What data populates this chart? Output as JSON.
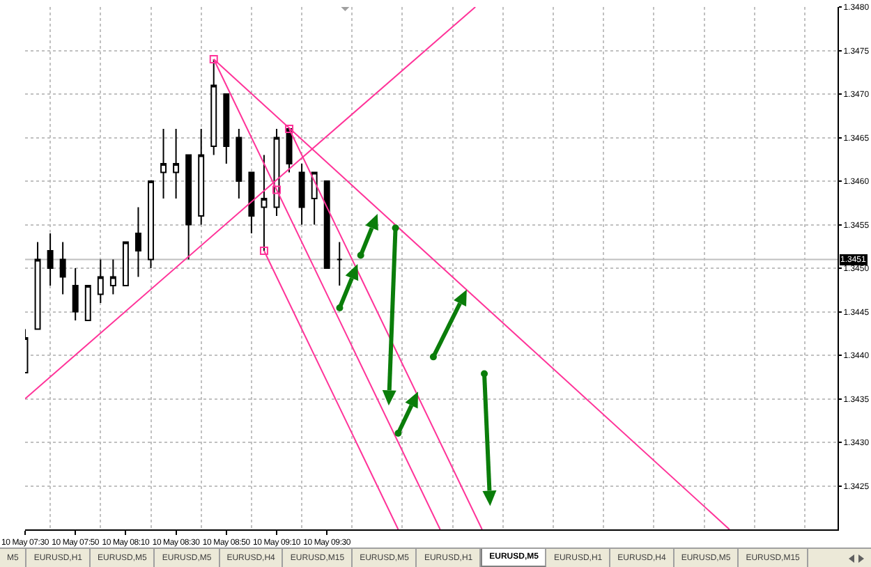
{
  "chart_data": {
    "type": "candlestick",
    "x": [
      "--05-10T07:30",
      "--05-10T07:35",
      "--05-10T07:40",
      "--05-10T07:45",
      "--05-10T07:50",
      "--05-10T07:55",
      "--05-10T08:00",
      "--05-10T08:05",
      "--05-10T08:10",
      "--05-10T08:15",
      "--05-10T08:20",
      "--05-10T08:25",
      "--05-10T08:30",
      "--05-10T08:35",
      "--05-10T08:40",
      "--05-10T08:45",
      "--05-10T08:50",
      "--05-10T08:55",
      "--05-10T09:00",
      "--05-10T09:05",
      "--05-10T09:10",
      "--05-10T09:15",
      "--05-10T09:20",
      "--05-10T09:25",
      "--05-10T09:30",
      "--05-10T09:35"
    ],
    "ohlc": [
      [
        1.3438,
        1.3443,
        1.3438,
        1.3442
      ],
      [
        1.3443,
        1.3453,
        1.3443,
        1.3451
      ],
      [
        1.3452,
        1.3454,
        1.3448,
        1.345
      ],
      [
        1.3451,
        1.3453,
        1.3447,
        1.3449
      ],
      [
        1.3448,
        1.345,
        1.3444,
        1.3445
      ],
      [
        1.3444,
        1.3448,
        1.3444,
        1.3448
      ],
      [
        1.3447,
        1.3451,
        1.3446,
        1.3449
      ],
      [
        1.3448,
        1.3451,
        1.3447,
        1.3449
      ],
      [
        1.3448,
        1.3453,
        1.3448,
        1.3453
      ],
      [
        1.3454,
        1.3457,
        1.3449,
        1.3452
      ],
      [
        1.3451,
        1.346,
        1.345,
        1.346
      ],
      [
        1.3461,
        1.3466,
        1.3458,
        1.3462
      ],
      [
        1.3461,
        1.3466,
        1.3458,
        1.3462
      ],
      [
        1.3463,
        1.3463,
        1.3451,
        1.3455
      ],
      [
        1.3456,
        1.3466,
        1.3455,
        1.3463
      ],
      [
        1.3464,
        1.3474,
        1.3463,
        1.3471
      ],
      [
        1.347,
        1.347,
        1.3462,
        1.3464
      ],
      [
        1.3465,
        1.3466,
        1.3458,
        1.346
      ],
      [
        1.3461,
        1.3461,
        1.3454,
        1.3456
      ],
      [
        1.3457,
        1.3463,
        1.3452,
        1.3458
      ],
      [
        1.3457,
        1.3466,
        1.3456,
        1.3465
      ],
      [
        1.3466,
        1.3466,
        1.3461,
        1.3462
      ],
      [
        1.3461,
        1.3462,
        1.3455,
        1.3457
      ],
      [
        1.3458,
        1.3461,
        1.3455,
        1.3461
      ],
      [
        1.346,
        1.346,
        1.345,
        1.345
      ],
      [
        1.3451,
        1.3453,
        1.3448,
        1.3451
      ]
    ],
    "color": "#000000",
    "colors": [
      "#ffffff",
      "#ffffff",
      "#000000",
      "#000000",
      "#000000",
      "#ffffff",
      "#ffffff",
      "#ffffff",
      "#ffffff",
      "#000000",
      "#ffffff",
      "#ffffff",
      "#ffffff",
      "#000000",
      "#ffffff",
      "#ffffff",
      "#000000",
      "#000000",
      "#000000",
      "#ffffff",
      "#ffffff",
      "#000000",
      "#000000",
      "#ffffff",
      "#000000",
      "#000000"
    ],
    "series": [
      {
        "type": "line",
        "x": [
          "--05-10T08:45",
          "--05-10T10:15"
        ],
        "values": [
          1.3474,
          1.342
        ],
        "color": "#ff3399"
      },
      {
        "type": "line",
        "x": [
          "--05-10T09:15",
          "--05-10T10:31:40"
        ],
        "values": [
          1.3466,
          1.342
        ],
        "color": "#ff3399"
      },
      {
        "type": "line",
        "x": [
          "--05-10T09:05",
          "--05-10T09:58:20"
        ],
        "values": [
          1.3452,
          1.342
        ],
        "color": "#ff3399"
      },
      {
        "type": "line",
        "x": [
          "--05-10T08:45",
          "--05-10T12:10"
        ],
        "values": [
          1.3474,
          1.342
        ],
        "color": "#ff3399"
      },
      {
        "type": "line",
        "x": [
          "--05-10T07:30",
          "--05-10T10:29"
        ],
        "values": [
          1.3435,
          1.348
        ],
        "color": "#ff3399"
      },
      {
        "type": "scatter",
        "x": [
          "--05-10T08:45",
          "--05-10T09:15",
          "--05-10T09:05",
          "--05-10T09:10"
        ],
        "values": [
          1.3474,
          1.3466,
          1.3452,
          1.3459
        ],
        "color": "#ff3399",
        "marker": "square"
      }
    ],
    "xlim": [
      "--05-10T07:30",
      "--05-10T12:53"
    ],
    "xticks": [
      {
        "value": "--05-10T07:30",
        "label": "10 May 07:30"
      },
      {
        "value": "--05-10T07:50",
        "label": "10 May 07:50"
      },
      {
        "value": "--05-10T08:10",
        "label": "10 May 08:10"
      },
      {
        "value": "--05-10T08:30",
        "label": "10 May 08:30"
      },
      {
        "value": "--05-10T08:50",
        "label": "10 May 08:50"
      },
      {
        "value": "--05-10T09:10",
        "label": "10 May 09:10"
      },
      {
        "value": "--05-10T09:30",
        "label": "10 May 09:30"
      },
      {
        "value": "--05-10T07:40",
        "label": null
      },
      {
        "value": "--05-10T08:00",
        "label": null
      },
      {
        "value": "--05-10T08:20",
        "label": null
      },
      {
        "value": "--05-10T08:40",
        "label": null
      },
      {
        "value": "--05-10T09:00",
        "label": null
      },
      {
        "value": "--05-10T09:20",
        "label": null
      },
      {
        "value": "--05-10T09:40",
        "label": null
      },
      {
        "value": "--05-10T10:00",
        "label": null
      },
      {
        "value": "--05-10T10:20",
        "label": null
      },
      {
        "value": "--05-10T10:40",
        "label": null
      },
      {
        "value": "--05-10T11:00",
        "label": null
      },
      {
        "value": "--05-10T11:20",
        "label": null
      },
      {
        "value": "--05-10T11:40",
        "label": null
      },
      {
        "value": "--05-10T12:00",
        "label": null
      },
      {
        "value": "--05-10T12:20",
        "label": null
      },
      {
        "value": "--05-10T12:40",
        "label": null
      }
    ],
    "ylim": [
      1.342,
      1.348
    ],
    "yticks": [
      1.3425,
      {
        "value": 1.343,
        "label": "1.3430"
      },
      1.3435,
      {
        "value": 1.344,
        "label": "1.3440"
      },
      1.3445,
      {
        "value": 1.345,
        "label": "1.3450"
      },
      1.3455,
      {
        "value": 1.346,
        "label": "1.3460"
      },
      1.3465,
      {
        "value": 1.347,
        "label": "1.3470"
      },
      1.3475,
      {
        "value": 1.348,
        "label": "1.3480"
      }
    ],
    "ref_lines": [
      {
        "axis": "y",
        "value": 1.3451,
        "label": "1.3451",
        "color": "#c0c0c0"
      }
    ],
    "grid": true,
    "annotations": [
      "M5",
      "EURUSD,H1",
      "EURUSD,M5",
      "EURUSD,M5",
      "EURUSD,H4",
      "EURUSD,M15",
      "EURUSD,M5",
      "EURUSD,H1",
      "EURUSD,M5",
      "EURUSD,H1",
      "EURUSD,H4",
      "EURUSD,M5",
      "EURUSD,M15"
    ]
  }
}
